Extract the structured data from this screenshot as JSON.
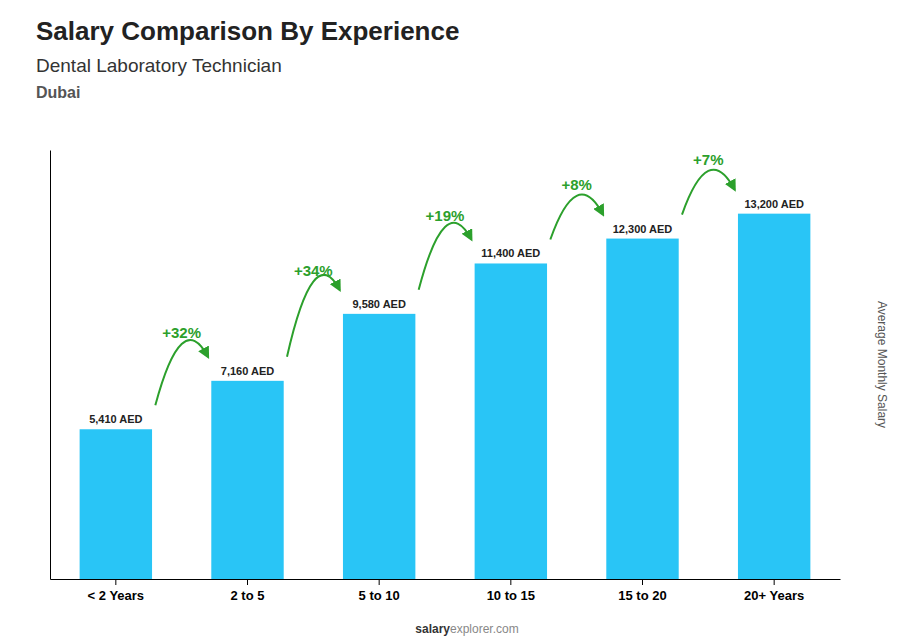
{
  "chart_data": {
    "type": "bar",
    "title": "Salary Comparison By Experience",
    "subtitle": [
      "Dental Laboratory Technician",
      "Dubai"
    ],
    "ylabel": "Average Monthly Salary",
    "categories": [
      "< 2 Years",
      "2 to 5",
      "5 to 10",
      "10 to 15",
      "15 to 20",
      "20+ Years"
    ],
    "values": [
      5410,
      7160,
      9580,
      11400,
      12300,
      13200
    ],
    "value_labels": [
      "5,410 AED",
      "7,160 AED",
      "9,580 AED",
      "11,400 AED",
      "12,300 AED",
      "13,200 AED"
    ],
    "data_labels": true,
    "color": "#29C5F6",
    "annotations": [
      "+32%",
      "+34%",
      "+19%",
      "+8%",
      "+7%"
    ],
    "footer": [
      "salary",
      "explorer",
      ".com"
    ],
    "ylim": [
      0,
      15500
    ],
    "tick_labels": "x",
    "grid": false
  }
}
